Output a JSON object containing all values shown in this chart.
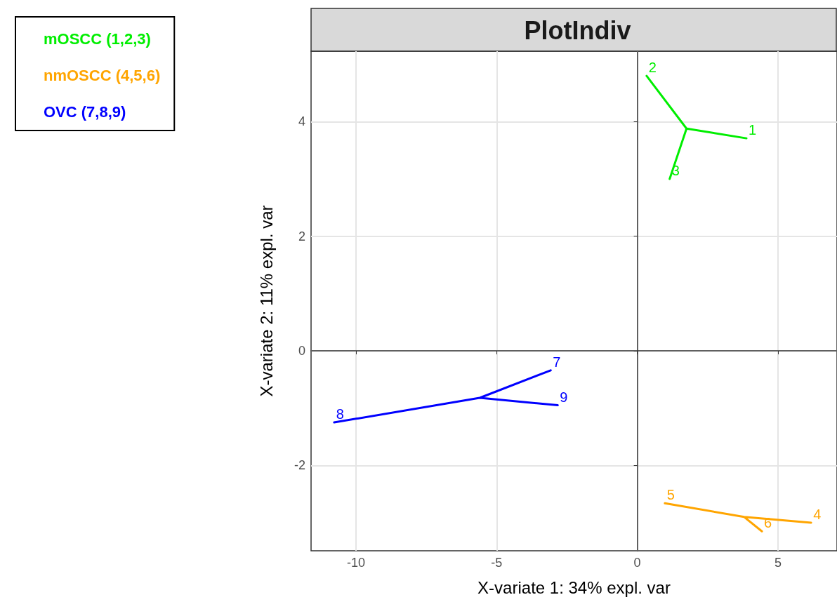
{
  "chart_data": {
    "type": "line",
    "title": "PlotIndiv",
    "xlabel": "X-variate 1: 34% expl. var",
    "ylabel": "X-variate 2: 11% expl. var",
    "xlim": [
      -11.6,
      7.1
    ],
    "ylim": [
      -3.49,
      5.23
    ],
    "xticks": [
      -10,
      -5,
      0,
      5
    ],
    "yticks": [
      -2,
      0,
      2,
      4
    ],
    "grid": true,
    "legend": "top left",
    "marker": "none",
    "line_style": "solid",
    "series": [
      {
        "name": "mOSCC (1,2,3)",
        "color": "#00ee00",
        "x": [
          3.88,
          1.75,
          0.33,
          null,
          1.75,
          1.15
        ],
        "values": [
          3.71,
          3.88,
          4.8,
          null,
          3.88,
          3.0
        ]
      },
      {
        "name": "nmOSCC (4,5,6)",
        "color": "#ffa500",
        "x": [
          6.18,
          3.8,
          0.98,
          null,
          3.8,
          4.43
        ],
        "values": [
          -3.0,
          -2.9,
          -2.66,
          null,
          -2.9,
          -3.15
        ]
      },
      {
        "name": "OVC (7,8,9)",
        "color": "#0000ff",
        "x": [
          -3.08,
          -5.6,
          -10.78,
          null,
          -5.6,
          -2.83
        ],
        "values": [
          -0.34,
          -0.82,
          -1.25,
          null,
          -0.82,
          -0.95
        ]
      }
    ],
    "annotations": [
      {
        "text": "1",
        "x": 3.88,
        "y": 3.71
      },
      {
        "text": "2",
        "x": 0.33,
        "y": 4.8
      },
      {
        "text": "3",
        "x": 1.15,
        "y": 3.0
      },
      {
        "text": "4",
        "x": 6.18,
        "y": -3.0
      },
      {
        "text": "5",
        "x": 0.98,
        "y": -2.66
      },
      {
        "text": "6",
        "x": 4.43,
        "y": -3.15
      },
      {
        "text": "7",
        "x": -3.08,
        "y": -0.34
      },
      {
        "text": "8",
        "x": -10.78,
        "y": -1.25
      },
      {
        "text": "9",
        "x": -2.83,
        "y": -0.95
      }
    ]
  }
}
